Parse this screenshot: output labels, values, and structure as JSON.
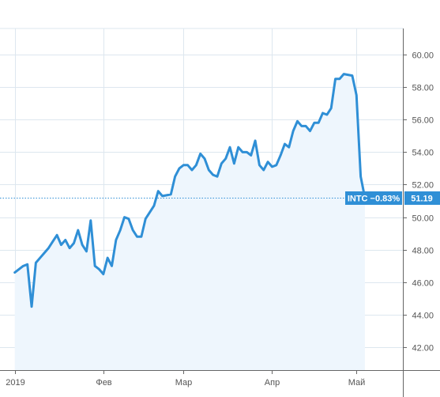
{
  "chart_data": {
    "type": "area",
    "ticker": "INTC",
    "change_label": "INTC −0.83%",
    "last_value_label": "51.19",
    "last_value": 51.19,
    "ylim": [
      40.6,
      61.6
    ],
    "xlim": [
      -3.5,
      92
    ],
    "y_ticks": [
      {
        "value": 42,
        "label": "42.00"
      },
      {
        "value": 44,
        "label": "44.00"
      },
      {
        "value": 46,
        "label": "46.00"
      },
      {
        "value": 48,
        "label": "48.00"
      },
      {
        "value": 50,
        "label": "50.00"
      },
      {
        "value": 52,
        "label": "52.00"
      },
      {
        "value": 54,
        "label": "54.00"
      },
      {
        "value": 56,
        "label": "56.00"
      },
      {
        "value": 58,
        "label": "58.00"
      },
      {
        "value": 60,
        "label": "60.00"
      }
    ],
    "x_ticks": [
      {
        "pos": 0,
        "label": "2019"
      },
      {
        "pos": 21,
        "label": "Фев"
      },
      {
        "pos": 40,
        "label": "Мар"
      },
      {
        "pos": 61,
        "label": "Апр"
      },
      {
        "pos": 81,
        "label": "Май"
      }
    ],
    "grid": true,
    "colors": {
      "line": "#2f8fd6",
      "fill": "#eef6fd",
      "badge": "#2f8fd6",
      "grid": "#dde7ef",
      "axis": "#666666"
    },
    "series": [
      {
        "values": [
          46.6,
          46.8,
          47.0,
          47.1,
          44.5,
          47.2,
          47.5,
          47.8,
          48.1,
          48.5,
          48.9,
          48.3,
          48.6,
          48.1,
          48.4,
          49.2,
          48.3,
          47.9,
          49.8,
          47.0,
          46.8,
          46.5,
          47.5,
          47.0,
          48.6,
          49.2,
          50.0,
          49.9,
          49.2,
          48.8,
          48.8,
          49.9,
          50.3,
          50.7,
          51.6,
          51.3,
          51.35,
          51.4,
          52.5,
          53.0,
          53.2,
          53.2,
          52.9,
          53.2,
          53.9,
          53.6,
          52.9,
          52.6,
          52.5,
          53.3,
          53.6,
          54.3,
          53.3,
          54.3,
          54.0,
          54.0,
          53.8,
          54.7,
          53.2,
          52.9,
          53.4,
          53.1,
          53.2,
          53.8,
          54.5,
          54.3,
          55.3,
          55.9,
          55.6,
          55.6,
          55.3,
          55.8,
          55.8,
          56.4,
          56.3,
          56.7,
          58.5,
          58.5,
          58.8,
          58.75,
          58.7,
          57.5,
          52.5,
          51.19
        ]
      }
    ]
  }
}
